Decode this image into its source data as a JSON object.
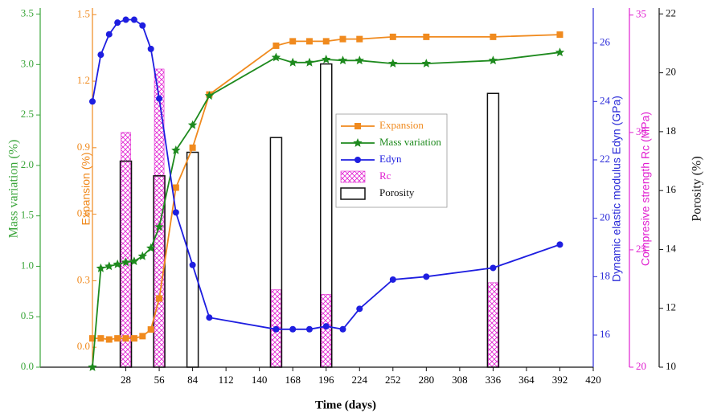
{
  "chart_data": {
    "type": "combo",
    "xlabel": "Time (days)",
    "xlim": [
      0,
      420
    ],
    "xticks": [
      28,
      56,
      84,
      112,
      140,
      168,
      196,
      224,
      252,
      280,
      308,
      336,
      364,
      392,
      420
    ],
    "y_axes": {
      "y": {
        "label": "Mass variation (%)",
        "color": "#3aa53a",
        "lim": [
          0,
          3.56
        ],
        "ticks": [
          {
            "value": 0,
            "label": "0.0"
          },
          0.5,
          {
            "value": 1,
            "label": "1.0"
          },
          1.5,
          {
            "value": 2,
            "label": "2.0"
          },
          2.5,
          {
            "value": 3,
            "label": "3.0"
          },
          3.5
        ]
      },
      "y2": {
        "label": "Expansion (%)",
        "color": "#f08a1e",
        "lim": [
          -0.09,
          1.53
        ],
        "ticks": [
          {
            "value": 0,
            "label": "0.0"
          },
          0.3,
          0.6,
          0.9,
          1.2,
          1.5
        ]
      },
      "y3": {
        "label": "Dynamic elastic modulus Edyn (GPa)",
        "color": "#2a2ad8",
        "lim": [
          14.9,
          27.2
        ],
        "ticks": [
          16,
          18,
          20,
          22,
          24,
          26
        ]
      },
      "y4": {
        "label": "Compresive strength Rc (MPa)",
        "color": "#e020d0",
        "lim": [
          20,
          35.3
        ],
        "ticks": [
          20,
          25,
          30,
          35
        ]
      },
      "y5": {
        "label": "Porosity  (%)",
        "color": "#111111",
        "lim": [
          10,
          22.2
        ],
        "ticks": [
          10,
          12,
          14,
          16,
          18,
          20,
          22
        ]
      }
    },
    "series": [
      {
        "name": "Expansion",
        "kind": "line",
        "marker": "square",
        "color": "#f08a1e",
        "axis": "y2",
        "x": [
          0,
          7,
          14,
          21,
          28,
          35,
          42,
          49,
          56,
          70,
          84,
          98,
          154,
          168,
          182,
          196,
          210,
          224,
          252,
          280,
          336,
          392
        ],
        "values": [
          0.04,
          0.04,
          0.035,
          0.04,
          0.04,
          0.04,
          0.05,
          0.08,
          0.22,
          0.72,
          0.9,
          1.14,
          1.36,
          1.38,
          1.38,
          1.38,
          1.39,
          1.39,
          1.4,
          1.4,
          1.4,
          1.41
        ]
      },
      {
        "name": "Mass variation",
        "kind": "line",
        "marker": "star",
        "color": "#1e8a1e",
        "axis": "y",
        "x": [
          0,
          7,
          14,
          21,
          28,
          35,
          42,
          49,
          56,
          70,
          84,
          98,
          154,
          168,
          182,
          196,
          210,
          224,
          252,
          280,
          336,
          392
        ],
        "values": [
          0,
          0.98,
          1.0,
          1.02,
          1.04,
          1.05,
          1.1,
          1.18,
          1.39,
          2.15,
          2.4,
          2.69,
          3.07,
          3.02,
          3.02,
          3.05,
          3.04,
          3.04,
          3.01,
          3.01,
          3.04,
          3.12
        ]
      },
      {
        "name": "Edyn",
        "kind": "line",
        "marker": "circle",
        "color": "#1e1ee0",
        "axis": "y3",
        "x": [
          0,
          7,
          14,
          21,
          28,
          35,
          42,
          49,
          56,
          70,
          84,
          98,
          154,
          168,
          182,
          196,
          210,
          224,
          252,
          280,
          336,
          392
        ],
        "values": [
          24.0,
          25.6,
          26.3,
          26.7,
          26.8,
          26.8,
          26.6,
          25.8,
          24.1,
          20.2,
          18.4,
          16.6,
          16.2,
          16.2,
          16.2,
          16.3,
          16.2,
          16.9,
          17.9,
          18.0,
          18.3,
          19.1
        ]
      },
      {
        "name": "Rc",
        "kind": "hatched-bar",
        "color": "#e020d0",
        "axis": "y4",
        "x": [
          28,
          56,
          154,
          196,
          336
        ],
        "values": [
          30.0,
          32.7,
          23.3,
          23.1,
          23.6
        ]
      },
      {
        "name": "Porosity",
        "kind": "outline-bar",
        "color": "#111111",
        "axis": "y5",
        "x": [
          28,
          56,
          84,
          154,
          196,
          336
        ],
        "values": [
          17.0,
          16.5,
          17.3,
          17.8,
          20.3,
          19.3
        ]
      }
    ]
  }
}
